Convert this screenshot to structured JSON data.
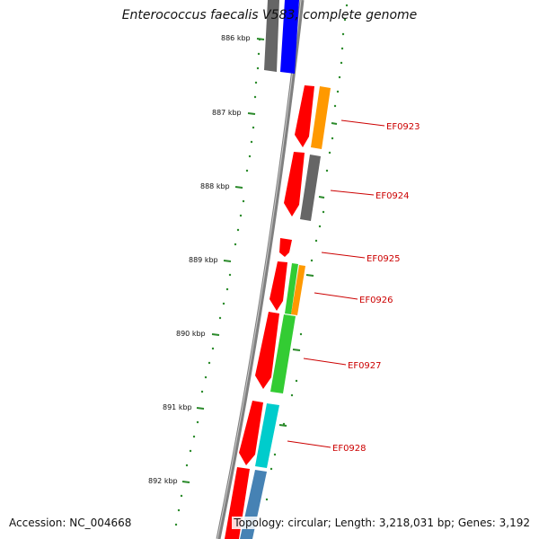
{
  "title": "Enterococcus faecalis V583, complete genome",
  "accession_text": "Accession: NC_004668",
  "summary_text": "Topology: circular; Length: 3,218,031 bp; Genes: 3,192",
  "ticks": [
    "886 kbp",
    "887 kbp",
    "888 kbp",
    "889 kbp",
    "890 kbp",
    "891 kbp",
    "892 kbp"
  ],
  "gene_labels": [
    "EF0923",
    "EF0924",
    "EF0925",
    "EF0926",
    "EF0927",
    "EF0928"
  ],
  "colors": {
    "backbone": "#808080",
    "tick_dots": "#2a8a2a",
    "label_red": "#cc0000",
    "strand_red": "#ff0000",
    "cog_blue": "#0000ff",
    "cog_gray": "#666666",
    "cog_orange": "#ff9900",
    "cog_green": "#33cc33",
    "cog_cyan": "#00cccc",
    "cog_steelblue": "#4682b4"
  }
}
